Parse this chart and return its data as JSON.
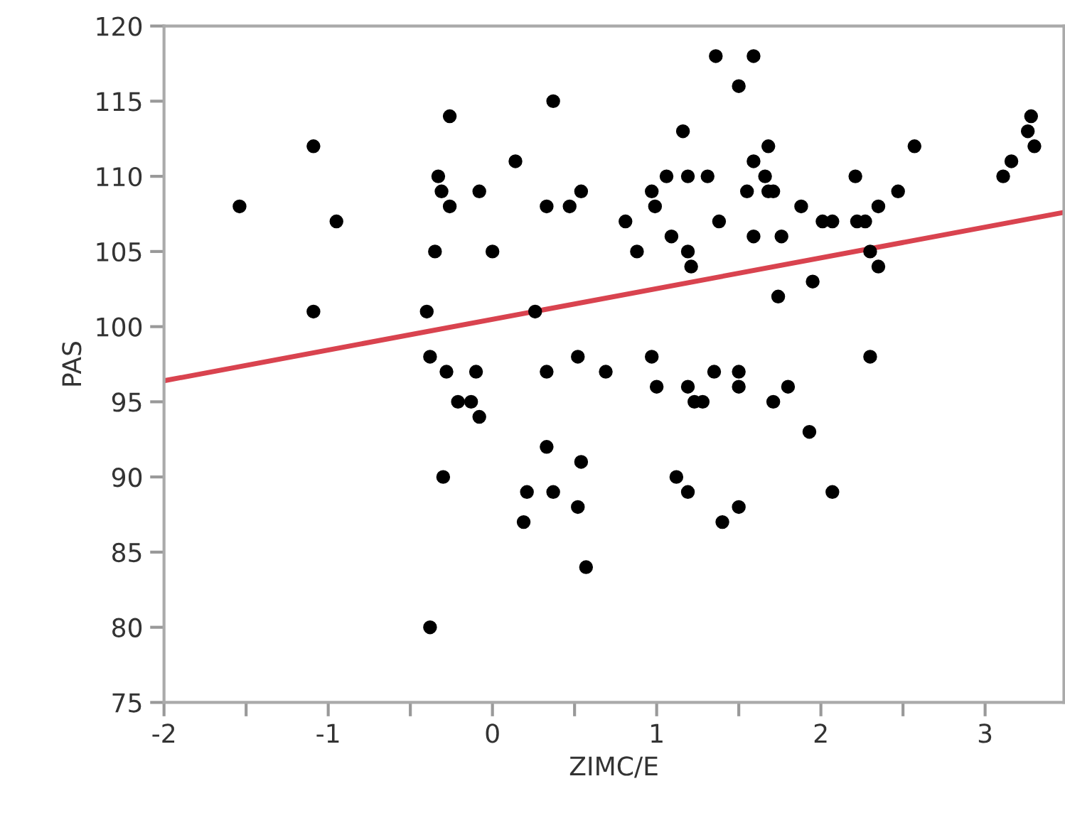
{
  "chart_data": {
    "type": "scatter",
    "xlabel": "ZIMC/E",
    "ylabel": "PAS",
    "xlim": [
      -2,
      3.48
    ],
    "ylim": [
      75,
      120
    ],
    "xticks": [
      -2,
      {
        "value": -1.5,
        "label": null
      },
      -1,
      {
        "value": -0.5,
        "label": null
      },
      0,
      {
        "value": 0.5,
        "label": null
      },
      1,
      {
        "value": 1.5,
        "label": null
      },
      2,
      {
        "value": 2.5,
        "label": null
      },
      3
    ],
    "yticks": [
      75,
      80,
      85,
      90,
      95,
      100,
      105,
      110,
      115,
      120
    ],
    "grid": false,
    "legend": false,
    "series": [
      {
        "color": "#000000",
        "marker": "circle",
        "x": [
          -1.54,
          -1.09,
          -0.95,
          -1.09,
          -0.26,
          -0.33,
          -0.31,
          -0.26,
          -0.35,
          -0.4,
          -0.38,
          -0.28,
          -0.21,
          -0.3,
          -0.38,
          1.36,
          1.5,
          0.37,
          1.16,
          0.14,
          1.06,
          1.19,
          1.31,
          -0.08,
          0.97,
          0.33,
          0.47,
          0.54,
          0.99,
          0.81,
          1.38,
          0.0,
          0.88,
          1.09,
          1.19,
          1.21,
          0.26,
          0.52,
          0.97,
          -0.1,
          0.33,
          0.69,
          1.35,
          1.5,
          1.0,
          1.19,
          1.5,
          -0.13,
          -0.08,
          1.23,
          1.28,
          0.33,
          0.54,
          1.12,
          0.21,
          0.37,
          1.19,
          0.52,
          1.5,
          0.19,
          1.4,
          0.57,
          1.59,
          1.68,
          1.59,
          1.66,
          1.55,
          1.68,
          1.71,
          2.21,
          2.57,
          1.88,
          2.01,
          2.07,
          2.22,
          2.27,
          2.35,
          2.47,
          1.59,
          1.76,
          2.3,
          2.35,
          1.95,
          1.74,
          2.3,
          1.8,
          1.71,
          1.93,
          2.07,
          3.11,
          3.16,
          3.28,
          3.26,
          3.3
        ],
        "values": [
          108,
          112,
          107,
          101,
          114,
          110,
          109,
          108,
          105,
          101,
          98,
          97,
          95,
          90,
          80,
          118,
          116,
          115,
          113,
          111,
          110,
          110,
          110,
          109,
          109,
          108,
          108,
          109,
          108,
          107,
          107,
          105,
          105,
          106,
          105,
          104,
          101,
          98,
          98,
          97,
          97,
          97,
          97,
          97,
          96,
          96,
          96,
          95,
          94,
          95,
          95,
          92,
          91,
          90,
          89,
          89,
          89,
          88,
          88,
          87,
          87,
          84,
          118,
          112,
          111,
          110,
          109,
          109,
          109,
          110,
          112,
          108,
          107,
          107,
          107,
          107,
          108,
          109,
          106,
          106,
          105,
          104,
          103,
          102,
          98,
          96,
          95,
          93,
          89,
          110,
          111,
          114,
          113,
          112
        ]
      },
      {
        "type": "line",
        "color": "#d9434f",
        "marker": "none",
        "line_style": "solid",
        "x": [
          -2,
          3.48
        ],
        "values": [
          96.4,
          107.6
        ]
      }
    ]
  }
}
